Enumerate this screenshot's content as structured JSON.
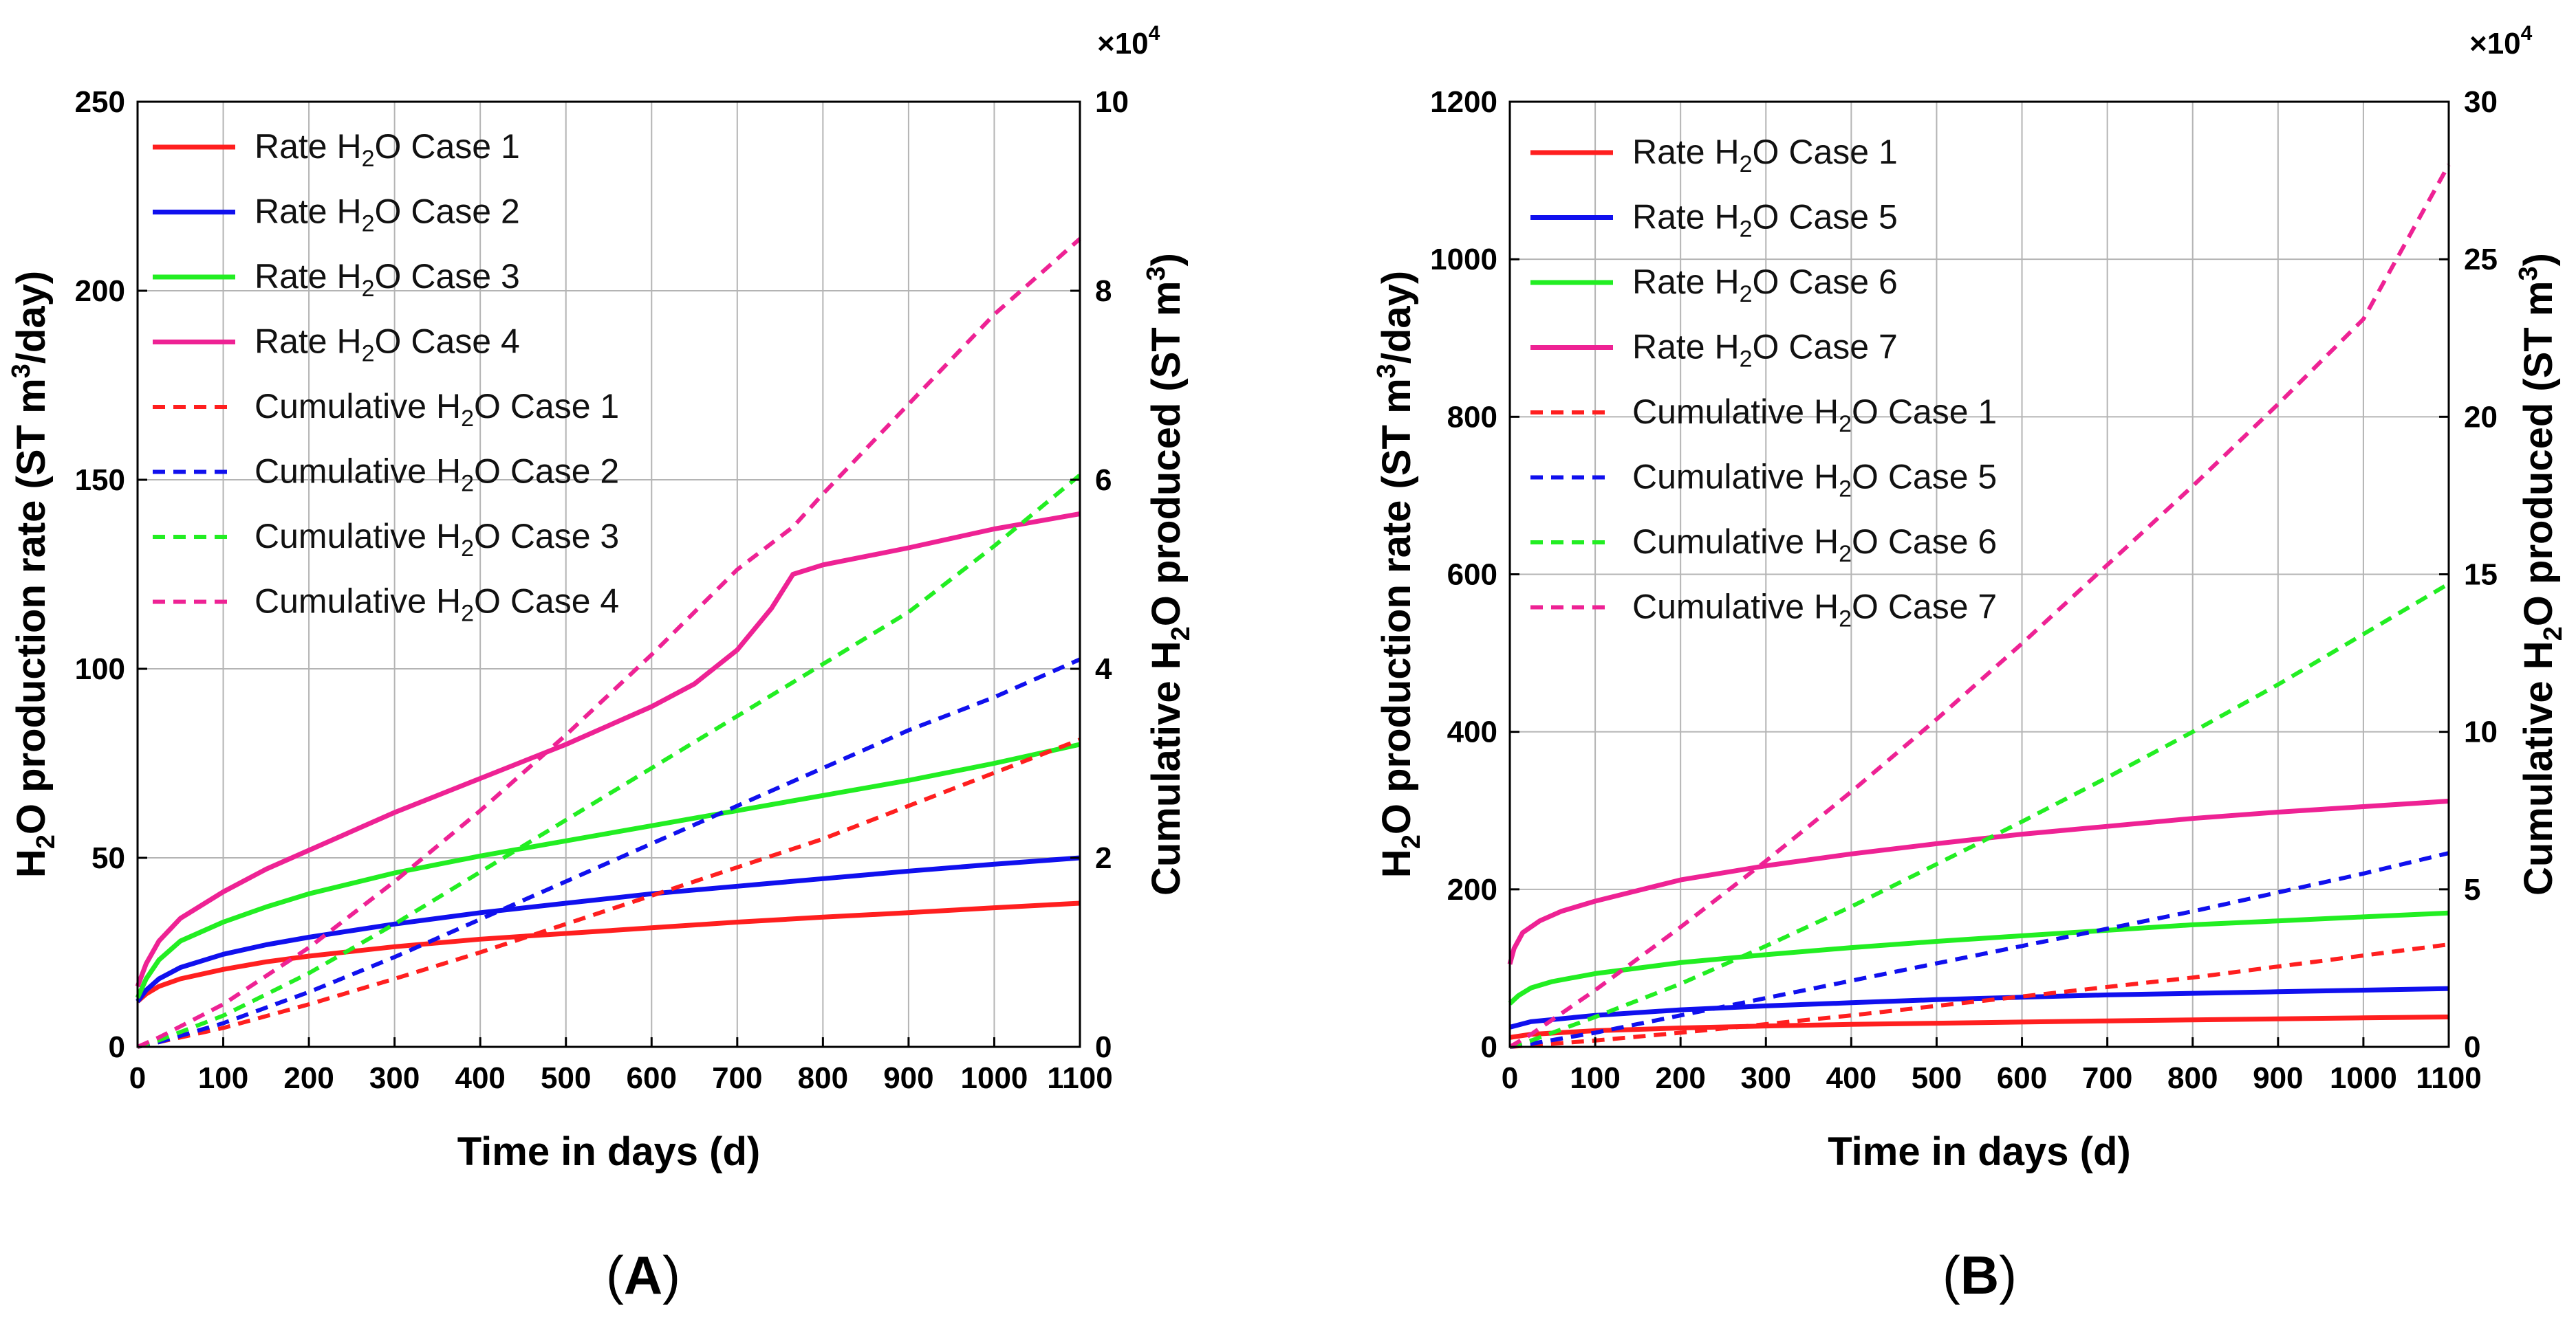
{
  "chart_data": [
    {
      "id": "A",
      "type": "line",
      "panel_label": "A",
      "xlabel": "Time in days (d)",
      "ylabel_left": {
        "prefix": "H",
        "sub": "2",
        "middle": "O production rate (ST m",
        "sup": "3",
        "suffix": "/day)"
      },
      "ylabel_right": {
        "prefix": "Cumulative H",
        "sub": "2",
        "suffix": "O produced (ST m",
        "sup": "3",
        "end": ")"
      },
      "right_exponent": {
        "base": "×10",
        "power": "4"
      },
      "xlim": [
        0,
        1100
      ],
      "ylim_left": [
        0,
        250
      ],
      "ylim_right": [
        0,
        10
      ],
      "x_ticks": [
        0,
        100,
        200,
        300,
        400,
        500,
        600,
        700,
        800,
        900,
        1000,
        1100
      ],
      "y_ticks_left": [
        0,
        50,
        100,
        150,
        200,
        250
      ],
      "y_ticks_right": [
        0,
        2,
        4,
        6,
        8,
        10
      ],
      "grid": true,
      "legend_position": "top-left",
      "series": [
        {
          "name": "Rate H2O Case 1",
          "label_pre": "Rate H",
          "label_post": "O Case 1",
          "color": "#ff1f1f",
          "dash": "solid",
          "axis": "left",
          "x": [
            0,
            10,
            25,
            50,
            100,
            150,
            200,
            300,
            400,
            500,
            600,
            700,
            800,
            900,
            1000,
            1100
          ],
          "y": [
            12,
            14,
            16,
            18,
            20.5,
            22.5,
            24,
            26.5,
            28.5,
            30,
            31.5,
            33,
            34.3,
            35.5,
            36.8,
            38
          ]
        },
        {
          "name": "Rate H2O Case 2",
          "label_pre": "Rate H",
          "label_post": "O Case 2",
          "color": "#1010ee",
          "dash": "solid",
          "axis": "left",
          "x": [
            0,
            10,
            25,
            50,
            100,
            150,
            200,
            300,
            400,
            500,
            600,
            700,
            800,
            900,
            1000,
            1100
          ],
          "y": [
            12,
            15,
            18,
            21,
            24.5,
            27,
            29,
            32.5,
            35.5,
            38,
            40.5,
            42.5,
            44.5,
            46.5,
            48.3,
            50
          ]
        },
        {
          "name": "Rate H2O Case 3",
          "label_pre": "Rate H",
          "label_post": "O Case 3",
          "color": "#22ee22",
          "dash": "solid",
          "axis": "left",
          "x": [
            0,
            10,
            25,
            50,
            100,
            150,
            200,
            300,
            400,
            500,
            600,
            700,
            800,
            900,
            1000,
            1100
          ],
          "y": [
            13,
            18,
            23,
            28,
            33,
            37,
            40.5,
            46,
            50.5,
            54.5,
            58.5,
            62.5,
            66.5,
            70.5,
            75,
            80
          ]
        },
        {
          "name": "Rate H2O Case 4",
          "label_pre": "Rate H",
          "label_post": "O Case 4",
          "color": "#ee2294",
          "dash": "solid",
          "axis": "left",
          "x": [
            0,
            10,
            25,
            50,
            100,
            150,
            200,
            300,
            400,
            500,
            600,
            650,
            700,
            740,
            765,
            800,
            900,
            1000,
            1100
          ],
          "y": [
            16,
            22,
            28,
            34,
            41,
            47,
            52,
            62,
            71,
            80,
            90,
            96,
            105,
            116,
            125,
            127.5,
            132,
            137,
            141
          ]
        },
        {
          "name": "Cumulative H2O Case 1",
          "label_pre": "Cumulative H",
          "label_post": "O Case 1",
          "color": "#ff1f1f",
          "dash": "dashed",
          "axis": "right",
          "x": [
            0,
            25,
            100,
            200,
            300,
            400,
            500,
            600,
            700,
            800,
            900,
            1000,
            1100
          ],
          "y": [
            0,
            0.05,
            0.2,
            0.45,
            0.72,
            1.0,
            1.3,
            1.6,
            1.9,
            2.2,
            2.55,
            2.9,
            3.25
          ]
        },
        {
          "name": "Cumulative H2O Case 2",
          "label_pre": "Cumulative H",
          "label_post": "O Case 2",
          "color": "#1010ee",
          "dash": "dashed",
          "axis": "right",
          "x": [
            0,
            25,
            100,
            200,
            300,
            400,
            500,
            600,
            700,
            800,
            900,
            1000,
            1100
          ],
          "y": [
            0,
            0.05,
            0.25,
            0.58,
            0.95,
            1.35,
            1.75,
            2.15,
            2.55,
            2.95,
            3.35,
            3.7,
            4.1
          ]
        },
        {
          "name": "Cumulative H2O Case 3",
          "label_pre": "Cumulative H",
          "label_post": "O Case 3",
          "color": "#22ee22",
          "dash": "dashed",
          "axis": "right",
          "x": [
            0,
            25,
            100,
            200,
            300,
            400,
            500,
            600,
            700,
            800,
            900,
            1000,
            1100
          ],
          "y": [
            0,
            0.07,
            0.33,
            0.78,
            1.3,
            1.85,
            2.4,
            2.95,
            3.5,
            4.05,
            4.6,
            5.3,
            6.05
          ]
        },
        {
          "name": "Cumulative H2O Case 4",
          "label_pre": "Cumulative H",
          "label_post": "O Case 4",
          "color": "#ee2294",
          "dash": "dashed",
          "axis": "right",
          "x": [
            0,
            25,
            100,
            200,
            300,
            400,
            500,
            600,
            700,
            765,
            800,
            900,
            1000,
            1100
          ],
          "y": [
            0,
            0.1,
            0.45,
            1.05,
            1.75,
            2.5,
            3.3,
            4.15,
            5.05,
            5.5,
            5.85,
            6.8,
            7.75,
            8.55
          ]
        }
      ]
    },
    {
      "id": "B",
      "type": "line",
      "panel_label": "B",
      "xlabel": "Time in days (d)",
      "ylabel_left": {
        "prefix": "H",
        "sub": "2",
        "middle": "O production rate (ST m",
        "sup": "3",
        "suffix": "/day)"
      },
      "ylabel_right": {
        "prefix": "Cumulative H",
        "sub": "2",
        "suffix": "O produced (ST m",
        "sup": "3",
        "end": ")"
      },
      "right_exponent": {
        "base": "×10",
        "power": "4"
      },
      "xlim": [
        0,
        1100
      ],
      "ylim_left": [
        0,
        1200
      ],
      "ylim_right": [
        0,
        30
      ],
      "x_ticks": [
        0,
        100,
        200,
        300,
        400,
        500,
        600,
        700,
        800,
        900,
        1000,
        1100
      ],
      "y_ticks_left": [
        0,
        200,
        400,
        600,
        800,
        1000,
        1200
      ],
      "y_ticks_right": [
        0,
        5,
        10,
        15,
        20,
        25,
        30
      ],
      "grid": true,
      "legend_position": "top-left",
      "series": [
        {
          "name": "Rate H2O Case 1",
          "label_pre": "Rate H",
          "label_post": "O Case 1",
          "color": "#ff1f1f",
          "dash": "solid",
          "axis": "left",
          "x": [
            0,
            25,
            100,
            200,
            300,
            400,
            500,
            600,
            700,
            800,
            900,
            1000,
            1100
          ],
          "y": [
            12,
            16,
            20.5,
            24,
            26.5,
            28.5,
            30,
            31.5,
            33,
            34.3,
            35.5,
            36.8,
            38
          ]
        },
        {
          "name": "Rate H2O Case 5",
          "label_pre": "Rate H",
          "label_post": "O Case 5",
          "color": "#1010ee",
          "dash": "solid",
          "axis": "left",
          "x": [
            0,
            25,
            100,
            200,
            300,
            400,
            500,
            600,
            700,
            800,
            900,
            1000,
            1100
          ],
          "y": [
            25,
            32,
            40,
            47,
            52,
            56,
            60,
            63,
            66,
            68,
            70,
            72,
            74
          ]
        },
        {
          "name": "Rate H2O Case 6",
          "label_pre": "Rate H",
          "label_post": "O Case 6",
          "color": "#22ee22",
          "dash": "solid",
          "axis": "left",
          "x": [
            0,
            10,
            25,
            50,
            100,
            200,
            300,
            400,
            500,
            600,
            700,
            800,
            900,
            1000,
            1100
          ],
          "y": [
            55,
            65,
            75,
            83,
            93,
            107,
            117,
            126,
            134,
            141,
            148,
            155,
            160,
            165,
            170
          ]
        },
        {
          "name": "Rate H2O Case 7",
          "label_pre": "Rate H",
          "label_post": "O Case 7",
          "color": "#ee2294",
          "dash": "solid",
          "axis": "left",
          "x": [
            0,
            5,
            15,
            35,
            60,
            100,
            200,
            300,
            400,
            500,
            600,
            700,
            800,
            900,
            1000,
            1100
          ],
          "y": [
            105,
            125,
            145,
            160,
            172,
            185,
            212,
            230,
            245,
            258,
            270,
            280,
            290,
            298,
            305,
            312
          ]
        },
        {
          "name": "Cumulative H2O Case 1",
          "label_pre": "Cumulative H",
          "label_post": "O Case 1",
          "color": "#ff1f1f",
          "dash": "dashed",
          "axis": "right",
          "x": [
            0,
            25,
            100,
            200,
            300,
            400,
            500,
            600,
            700,
            800,
            900,
            1000,
            1100
          ],
          "y": [
            0,
            0.05,
            0.2,
            0.45,
            0.72,
            1.0,
            1.3,
            1.6,
            1.9,
            2.2,
            2.55,
            2.9,
            3.25
          ]
        },
        {
          "name": "Cumulative H2O Case 5",
          "label_pre": "Cumulative H",
          "label_post": "O Case 5",
          "color": "#1010ee",
          "dash": "dashed",
          "axis": "right",
          "x": [
            0,
            25,
            100,
            200,
            300,
            400,
            500,
            600,
            700,
            800,
            900,
            1000,
            1100
          ],
          "y": [
            0,
            0.1,
            0.45,
            1.0,
            1.55,
            2.1,
            2.65,
            3.2,
            3.75,
            4.3,
            4.9,
            5.5,
            6.15
          ]
        },
        {
          "name": "Cumulative H2O Case 6",
          "label_pre": "Cumulative H",
          "label_post": "O Case 6",
          "color": "#22ee22",
          "dash": "dashed",
          "axis": "right",
          "x": [
            0,
            25,
            100,
            200,
            300,
            400,
            500,
            600,
            700,
            800,
            900,
            1000,
            1100
          ],
          "y": [
            0,
            0.2,
            0.95,
            2.0,
            3.2,
            4.45,
            5.8,
            7.15,
            8.55,
            10.0,
            11.5,
            13.1,
            14.7
          ]
        },
        {
          "name": "Cumulative H2O Case 7",
          "label_pre": "Cumulative H",
          "label_post": "O Case 7",
          "color": "#ee2294",
          "dash": "dashed",
          "axis": "right",
          "x": [
            0,
            25,
            100,
            200,
            300,
            400,
            500,
            600,
            700,
            800,
            900,
            1000,
            1100
          ],
          "y": [
            0,
            0.4,
            1.8,
            3.8,
            5.9,
            8.1,
            10.4,
            12.8,
            15.3,
            17.8,
            20.4,
            23.1,
            28
          ]
        }
      ]
    }
  ]
}
